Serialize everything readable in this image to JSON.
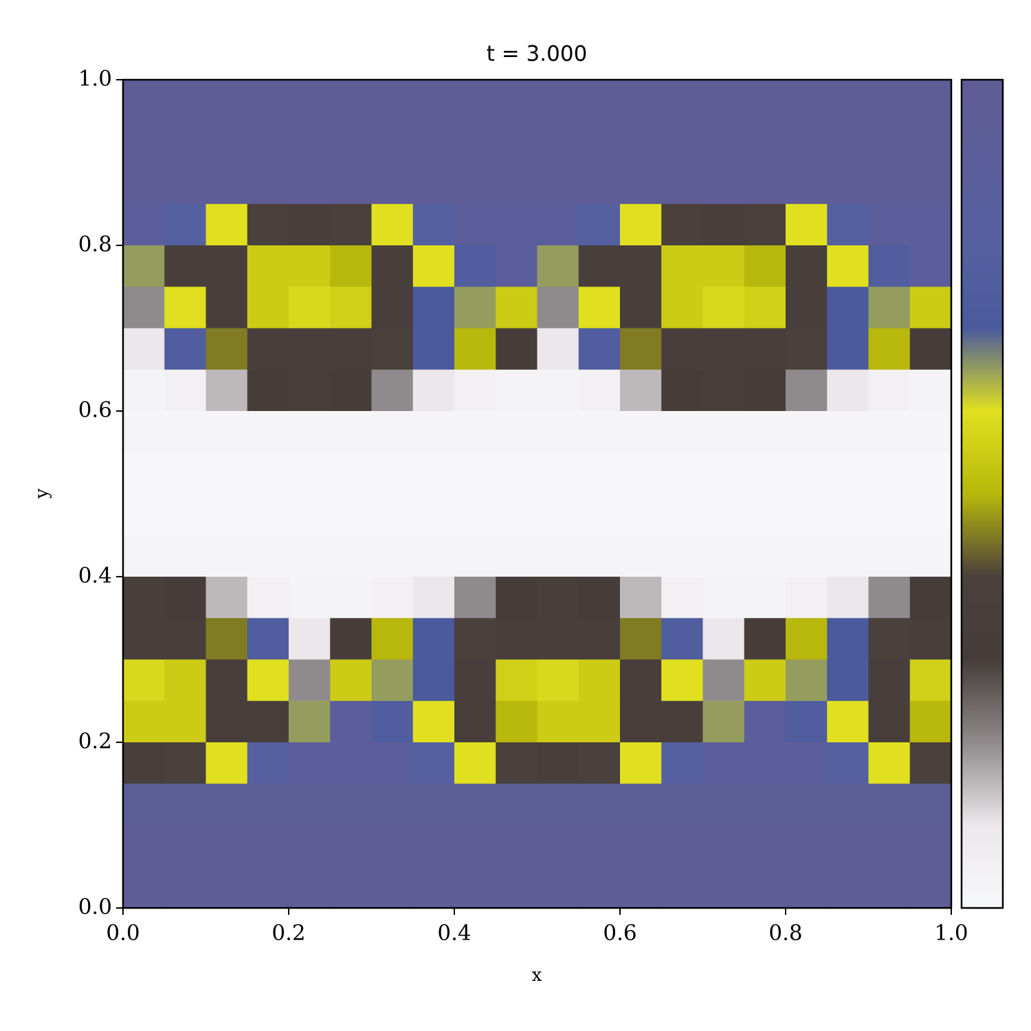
{
  "chart_data": {
    "type": "heatmap",
    "title": "t = 3.000",
    "xlabel": "x",
    "ylabel": "y",
    "xlim": [
      0,
      1
    ],
    "ylim": [
      0,
      1
    ],
    "xticks": [
      {
        "value": 0,
        "label": "0.0"
      },
      {
        "value": 0.2,
        "label": "0.2"
      },
      {
        "value": 0.4,
        "label": "0.4"
      },
      {
        "value": 0.6,
        "label": "0.6"
      },
      {
        "value": 0.8,
        "label": "0.8"
      },
      {
        "value": 1,
        "label": "1.0"
      }
    ],
    "yticks": [
      {
        "value": 0,
        "label": "0.0"
      },
      {
        "value": 0.2,
        "label": "0.2"
      },
      {
        "value": 0.4,
        "label": "0.4"
      },
      {
        "value": 0.6,
        "label": "0.6"
      },
      {
        "value": 0.8,
        "label": "0.8"
      },
      {
        "value": 1,
        "label": "1.0"
      }
    ],
    "colormap": [
      "#f8f9fc",
      "#ebe7ea",
      "#8f8a8b",
      "#463d3b",
      "#4a403c",
      "#b8b80c",
      "#e0e020",
      "#4a5a9c",
      "#5560a0",
      "#5b5e9a",
      "#605c94"
    ],
    "colorbar": true,
    "z": [
      [
        0.95,
        0.95,
        0.95,
        0.95,
        0.95,
        0.95,
        0.95,
        0.95,
        0.95,
        0.95,
        0.95,
        0.95,
        0.95,
        0.95,
        0.95,
        0.95,
        0.95,
        0.95,
        0.95,
        0.95
      ],
      [
        0.95,
        0.95,
        0.95,
        0.95,
        0.95,
        0.95,
        0.95,
        0.95,
        0.95,
        0.95,
        0.95,
        0.95,
        0.95,
        0.95,
        0.95,
        0.95,
        0.95,
        0.95,
        0.95,
        0.95
      ],
      [
        0.95,
        0.95,
        0.95,
        0.95,
        0.95,
        0.95,
        0.95,
        0.95,
        0.95,
        0.95,
        0.95,
        0.95,
        0.95,
        0.95,
        0.95,
        0.95,
        0.95,
        0.95,
        0.95,
        0.95
      ],
      [
        0.9,
        0.8,
        0.6,
        0.4,
        0.35,
        0.4,
        0.6,
        0.8,
        0.9,
        0.9,
        0.9,
        0.8,
        0.6,
        0.4,
        0.35,
        0.4,
        0.6,
        0.8,
        0.9,
        0.9
      ],
      [
        0.65,
        0.35,
        0.35,
        0.55,
        0.55,
        0.5,
        0.35,
        0.6,
        0.75,
        0.9,
        0.65,
        0.35,
        0.35,
        0.55,
        0.55,
        0.5,
        0.35,
        0.6,
        0.75,
        0.9
      ],
      [
        0.2,
        0.6,
        0.35,
        0.55,
        0.58,
        0.56,
        0.35,
        0.7,
        0.65,
        0.55,
        0.2,
        0.6,
        0.35,
        0.55,
        0.58,
        0.56,
        0.35,
        0.7,
        0.65,
        0.55
      ],
      [
        0.1,
        0.75,
        0.45,
        0.35,
        0.35,
        0.35,
        0.4,
        0.7,
        0.5,
        0.3,
        0.1,
        0.75,
        0.45,
        0.35,
        0.35,
        0.35,
        0.4,
        0.7,
        0.5,
        0.3
      ],
      [
        0.03,
        0.05,
        0.15,
        0.3,
        0.35,
        0.3,
        0.2,
        0.1,
        0.05,
        0.03,
        0.03,
        0.05,
        0.15,
        0.3,
        0.35,
        0.3,
        0.2,
        0.1,
        0.05,
        0.03
      ],
      [
        0.02,
        0.02,
        0.02,
        0.02,
        0.02,
        0.02,
        0.02,
        0.02,
        0.02,
        0.02,
        0.02,
        0.02,
        0.02,
        0.02,
        0.02,
        0.02,
        0.02,
        0.02,
        0.02,
        0.02
      ],
      [
        0.01,
        0.01,
        0.01,
        0.01,
        0.01,
        0.01,
        0.01,
        0.01,
        0.01,
        0.01,
        0.01,
        0.01,
        0.01,
        0.01,
        0.01,
        0.01,
        0.01,
        0.01,
        0.01,
        0.01
      ],
      [
        0.01,
        0.01,
        0.01,
        0.01,
        0.01,
        0.01,
        0.01,
        0.01,
        0.01,
        0.01,
        0.01,
        0.01,
        0.01,
        0.01,
        0.01,
        0.01,
        0.01,
        0.01,
        0.01,
        0.01
      ],
      [
        0.02,
        0.02,
        0.02,
        0.02,
        0.02,
        0.02,
        0.02,
        0.02,
        0.02,
        0.02,
        0.02,
        0.02,
        0.02,
        0.02,
        0.02,
        0.02,
        0.02,
        0.02,
        0.02,
        0.02
      ],
      [
        0.35,
        0.3,
        0.15,
        0.05,
        0.03,
        0.03,
        0.05,
        0.1,
        0.2,
        0.3,
        0.35,
        0.3,
        0.15,
        0.05,
        0.03,
        0.03,
        0.05,
        0.1,
        0.2,
        0.3
      ],
      [
        0.35,
        0.35,
        0.45,
        0.75,
        0.1,
        0.3,
        0.5,
        0.7,
        0.4,
        0.35,
        0.35,
        0.35,
        0.45,
        0.75,
        0.1,
        0.3,
        0.5,
        0.7,
        0.4,
        0.35
      ],
      [
        0.58,
        0.55,
        0.35,
        0.6,
        0.2,
        0.55,
        0.65,
        0.7,
        0.35,
        0.56,
        0.58,
        0.55,
        0.35,
        0.6,
        0.2,
        0.55,
        0.65,
        0.7,
        0.35,
        0.56
      ],
      [
        0.55,
        0.55,
        0.35,
        0.35,
        0.65,
        0.9,
        0.75,
        0.6,
        0.35,
        0.5,
        0.55,
        0.55,
        0.35,
        0.35,
        0.65,
        0.9,
        0.75,
        0.6,
        0.35,
        0.5
      ],
      [
        0.35,
        0.4,
        0.6,
        0.8,
        0.9,
        0.9,
        0.9,
        0.8,
        0.6,
        0.4,
        0.35,
        0.4,
        0.6,
        0.8,
        0.9,
        0.9,
        0.9,
        0.8,
        0.6,
        0.4
      ],
      [
        0.93,
        0.93,
        0.93,
        0.93,
        0.93,
        0.93,
        0.93,
        0.93,
        0.93,
        0.93,
        0.93,
        0.93,
        0.93,
        0.93,
        0.93,
        0.93,
        0.93,
        0.93,
        0.93,
        0.93
      ],
      [
        0.95,
        0.95,
        0.95,
        0.95,
        0.95,
        0.95,
        0.95,
        0.95,
        0.95,
        0.95,
        0.95,
        0.95,
        0.95,
        0.95,
        0.95,
        0.95,
        0.95,
        0.95,
        0.95,
        0.95
      ],
      [
        0.95,
        0.95,
        0.95,
        0.95,
        0.95,
        0.95,
        0.95,
        0.95,
        0.95,
        0.95,
        0.95,
        0.95,
        0.95,
        0.95,
        0.95,
        0.95,
        0.95,
        0.95,
        0.95,
        0.95
      ]
    ]
  }
}
